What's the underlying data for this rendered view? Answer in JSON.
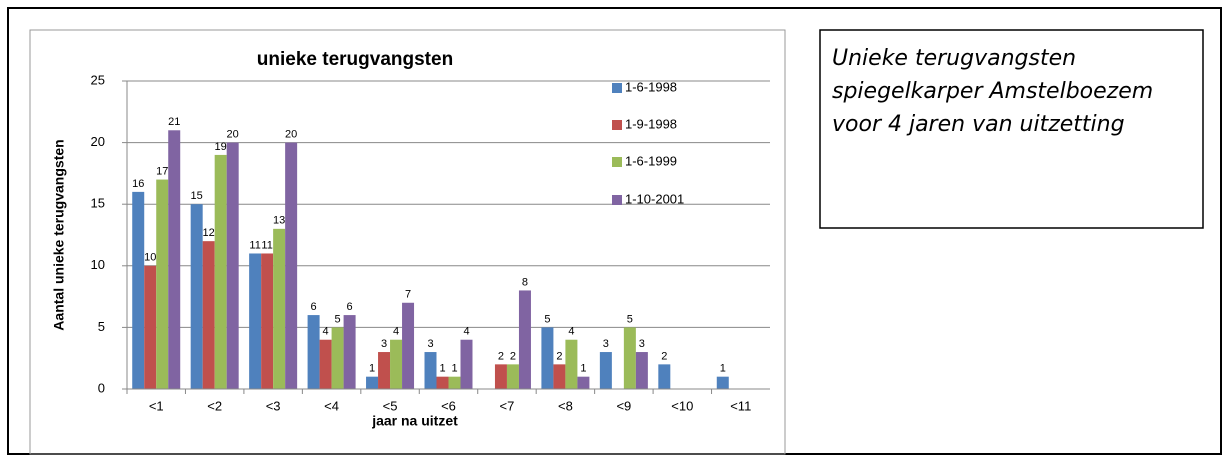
{
  "chart_data": {
    "type": "bar",
    "title": "unieke terugvangsten",
    "x_label": "jaar na uitzet",
    "y_label": "Aantal unieke terugvangsten",
    "categories": [
      "<1",
      "<2",
      "<3",
      "<4",
      "<5",
      "<6",
      "<7",
      "<8",
      "<9",
      "<10",
      "<11"
    ],
    "series": [
      {
        "name": "1-6-1998",
        "color": "#4f81bd",
        "values": [
          16,
          15,
          11,
          6,
          1,
          3,
          null,
          5,
          3,
          2,
          1
        ]
      },
      {
        "name": "1-9-1998",
        "color": "#c0504d",
        "values": [
          10,
          12,
          11,
          4,
          3,
          1,
          2,
          2,
          null,
          null,
          null
        ]
      },
      {
        "name": "1-6-1999",
        "color": "#9bbb59",
        "values": [
          17,
          19,
          13,
          5,
          4,
          1,
          2,
          4,
          5,
          null,
          null
        ]
      },
      {
        "name": "1-10-2001",
        "color": "#8064a2",
        "values": [
          21,
          20,
          20,
          6,
          7,
          4,
          8,
          1,
          3,
          null,
          null
        ]
      }
    ],
    "ylim": [
      0,
      25
    ],
    "yticks": [
      0,
      5,
      10,
      15,
      20,
      25
    ],
    "grid": true,
    "legend": "right"
  },
  "caption": "Unieke terugvangsten spiegelkarper Amstelboezem voor 4 jaren van uitzetting"
}
